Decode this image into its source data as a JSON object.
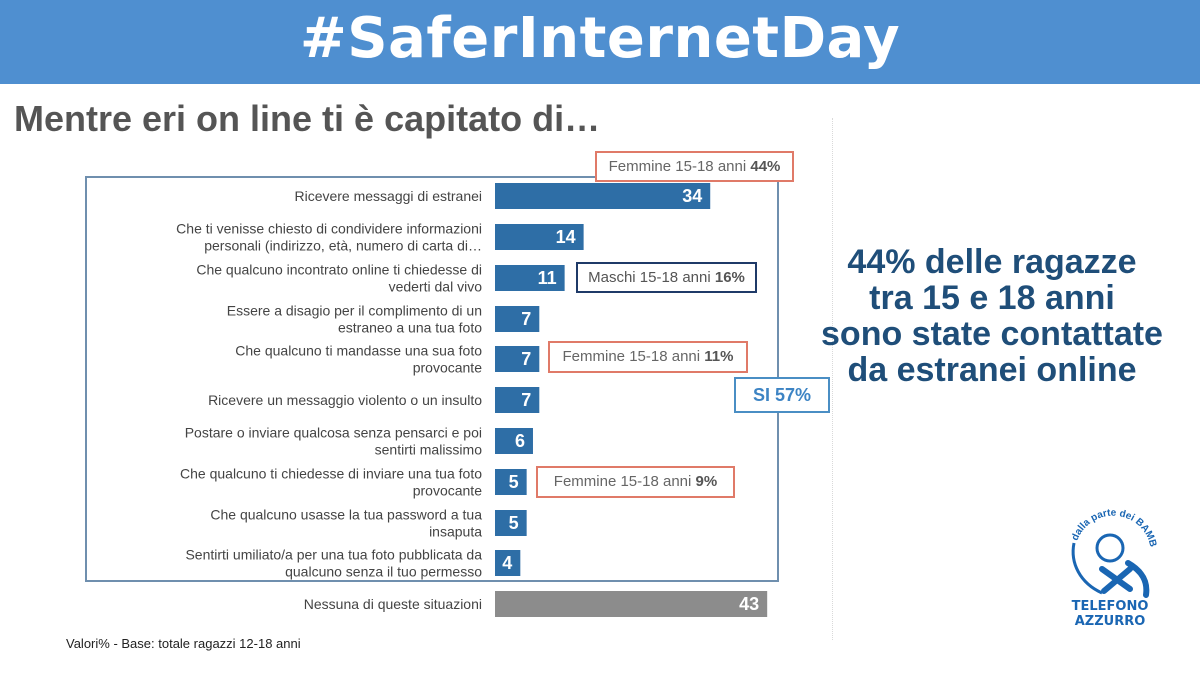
{
  "header": {
    "title": "#SaferInternetDay"
  },
  "page": {
    "title": "Mentre eri on line ti è capitato di…"
  },
  "chart_data": {
    "type": "bar",
    "orientation": "horizontal",
    "title": "Mentre eri on line ti è capitato di…",
    "xlim": [
      0,
      50
    ],
    "unit": "%",
    "categories": [
      [
        "Ricevere messaggi di estranei"
      ],
      [
        "Che ti venisse chiesto di condividere informazioni",
        "personali (indirizzo, età, numero di carta di…"
      ],
      [
        "Che qualcuno incontrato online ti chiedesse di",
        "vederti dal vivo"
      ],
      [
        "Essere a disagio per il complimento di un",
        "estraneo a una tua foto"
      ],
      [
        "Che qualcuno ti mandasse una sua foto",
        "provocante"
      ],
      [
        "Ricevere un messaggio violento o un insulto"
      ],
      [
        "Postare o inviare qualcosa senza pensarci e poi",
        "sentirti malissimo"
      ],
      [
        "Che qualcuno ti chiedesse di inviare una tua foto",
        "provocante"
      ],
      [
        "Che qualcuno usasse la tua password a tua",
        "insaputa"
      ],
      [
        "Sentirti umiliato/a per una tua foto pubblicata da",
        "qualcuno senza il tuo permesso"
      ],
      [
        "Nessuna di queste situazioni"
      ]
    ],
    "values": [
      34,
      14,
      11,
      7,
      7,
      7,
      6,
      5,
      5,
      4,
      43
    ],
    "bar_colors": [
      "#2e6ea6",
      "#2e6ea6",
      "#2e6ea6",
      "#2e6ea6",
      "#2e6ea6",
      "#2e6ea6",
      "#2e6ea6",
      "#2e6ea6",
      "#2e6ea6",
      "#2e6ea6",
      "#8c8c8c"
    ]
  },
  "callouts": {
    "c1": {
      "label": "Femmine 15-18 anni",
      "value": "44%"
    },
    "c2": {
      "label": "Maschi 15-18 anni",
      "value": "16%"
    },
    "c3": {
      "label": "Femmine 15-18 anni",
      "value": "11%"
    },
    "c4": {
      "label": "SI 57%"
    },
    "c5": {
      "label": "Femmine 15-18 anni",
      "value": "9%"
    }
  },
  "headline": {
    "lines": [
      "44% delle ragazze",
      "tra 15 e 18 anni",
      "sono state contattate",
      "da estranei online"
    ]
  },
  "footnote": "Valori% - Base: totale ragazzi 12-18 anni",
  "logo": {
    "top_text": "dalla parte dei",
    "bambini": "BAMBINI",
    "line1": "TELEFONO",
    "line2": "AZZURRO"
  },
  "colors": {
    "banner": "#4f8fd0",
    "bar": "#2e6ea6",
    "bar_none": "#8c8c8c",
    "headline": "#1f4e79",
    "callout_red": "#e07a68"
  }
}
